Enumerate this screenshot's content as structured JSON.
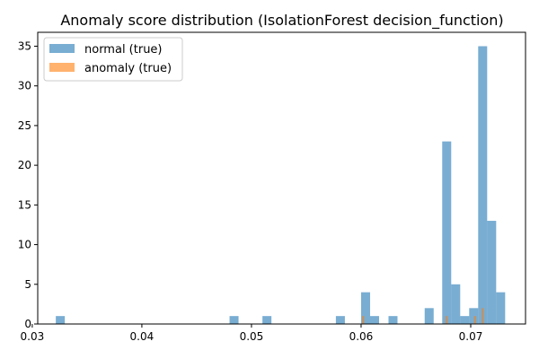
{
  "chart_data": {
    "type": "bar",
    "subtype": "histogram",
    "title": "Anomaly score distribution (IsolationForest decision_function)",
    "xlabel": "",
    "ylabel": "",
    "xlim": [
      0.0305,
      0.075
    ],
    "ylim": [
      0,
      36.75
    ],
    "x_ticks": [
      0.03,
      0.04,
      0.05,
      0.06,
      0.07
    ],
    "x_tick_labels": [
      "0.03",
      "0.04",
      "0.05",
      "0.06",
      "0.07"
    ],
    "y_ticks": [
      0,
      5,
      10,
      15,
      20,
      25,
      30,
      35
    ],
    "y_tick_labels": [
      "0",
      "5",
      "10",
      "15",
      "20",
      "25",
      "30",
      "35"
    ],
    "grid": false,
    "legend_position": "top-left",
    "series": [
      {
        "name": "normal (true)",
        "color": "#1f77b4",
        "alpha": 0.6,
        "bin_width": 0.00082,
        "bins": [
          {
            "x0": 0.03215,
            "count": 1
          },
          {
            "x0": 0.048,
            "count": 1
          },
          {
            "x0": 0.051,
            "count": 1
          },
          {
            "x0": 0.0577,
            "count": 1
          },
          {
            "x0": 0.06,
            "count": 4
          },
          {
            "x0": 0.06082,
            "count": 1
          },
          {
            "x0": 0.0625,
            "count": 1
          },
          {
            "x0": 0.0658,
            "count": 2
          },
          {
            "x0": 0.0674,
            "count": 23
          },
          {
            "x0": 0.06822,
            "count": 5
          },
          {
            "x0": 0.06904,
            "count": 1
          },
          {
            "x0": 0.06986,
            "count": 2
          },
          {
            "x0": 0.07068,
            "count": 35
          },
          {
            "x0": 0.0715,
            "count": 13
          },
          {
            "x0": 0.07232,
            "count": 4
          }
        ]
      },
      {
        "name": "anomaly (true)",
        "color": "#ff7f0e",
        "alpha": 0.6,
        "bin_width": 0.00018,
        "bins": [
          {
            "x0": 0.0601,
            "count": 1
          },
          {
            "x0": 0.0677,
            "count": 1
          },
          {
            "x0": 0.0703,
            "count": 1
          },
          {
            "x0": 0.071,
            "count": 2
          }
        ]
      }
    ]
  }
}
